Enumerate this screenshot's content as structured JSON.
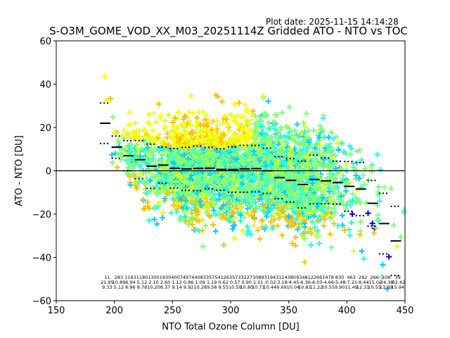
{
  "chart_data": {
    "type": "scatter",
    "title": "S-O3M_GOME_VOD_XX_M03_20251114Z Gridded ATO - NTO vs TOC",
    "plot_date": "Plot date: 2025-11-15 14:14:28",
    "xlabel": "NTO Total Ozone Column [DU]",
    "ylabel": "ATO - NTO [DU]",
    "xlim": [
      150,
      450
    ],
    "ylim": [
      -60,
      60
    ],
    "xticks": [
      150,
      200,
      250,
      300,
      350,
      400,
      450
    ],
    "yticks": [
      -60,
      -40,
      -20,
      0,
      20,
      40,
      60
    ],
    "grid": false,
    "marker": "+",
    "zero_line": 0,
    "point_colors": [
      "#0000dd",
      "#00ccff",
      "#22ffdd",
      "#7fff7f",
      "#ddff22",
      "#ffff00",
      "#ffbf00"
    ],
    "background_color": "#7fff7f",
    "bins": {
      "width": 10,
      "x_start": [
        190,
        200,
        210,
        220,
        230,
        240,
        250,
        260,
        270,
        280,
        290,
        300,
        310,
        320,
        330,
        340,
        350,
        360,
        370,
        380,
        390,
        400,
        410,
        420,
        430,
        440
      ],
      "count": [
        "11",
        "283",
        "1183",
        "1180",
        "1300",
        "1930",
        "4007",
        "4974",
        "4083",
        "3575",
        "4126",
        "3573",
        "3227",
        "3089",
        "3194",
        "3114",
        "3809",
        "3481",
        "2266",
        "1478",
        "830",
        "463",
        "282",
        "266",
        "108",
        "39"
      ],
      "mean": [
        "21.95",
        "10.89",
        "6.94",
        "5.12",
        "2.10",
        "2.60",
        "1.12",
        "0.86",
        "1.09",
        "1.19",
        "0.62",
        "0.57",
        "0.90",
        "1.01",
        "-0.02",
        "-3.18",
        "-4.45",
        "-6.36",
        "-4.03",
        "-4.66",
        "-5.48",
        "-7.21",
        "-8.44",
        "-15.02",
        "-24.38",
        "-32.42"
      ],
      "std": [
        "9.33",
        "5.12",
        "6.96",
        "8.78",
        "10.20",
        "8.37",
        "9.14",
        "9.92",
        "10.28",
        "9.58",
        "9.55",
        "10.50",
        "10.80",
        "10.71",
        "10.44",
        "9.69",
        "10.04",
        "10.81",
        "11.22",
        "10.55",
        "9.90",
        "11.49",
        "12.31",
        "10.55",
        "13.99",
        "15.94"
      ]
    }
  }
}
